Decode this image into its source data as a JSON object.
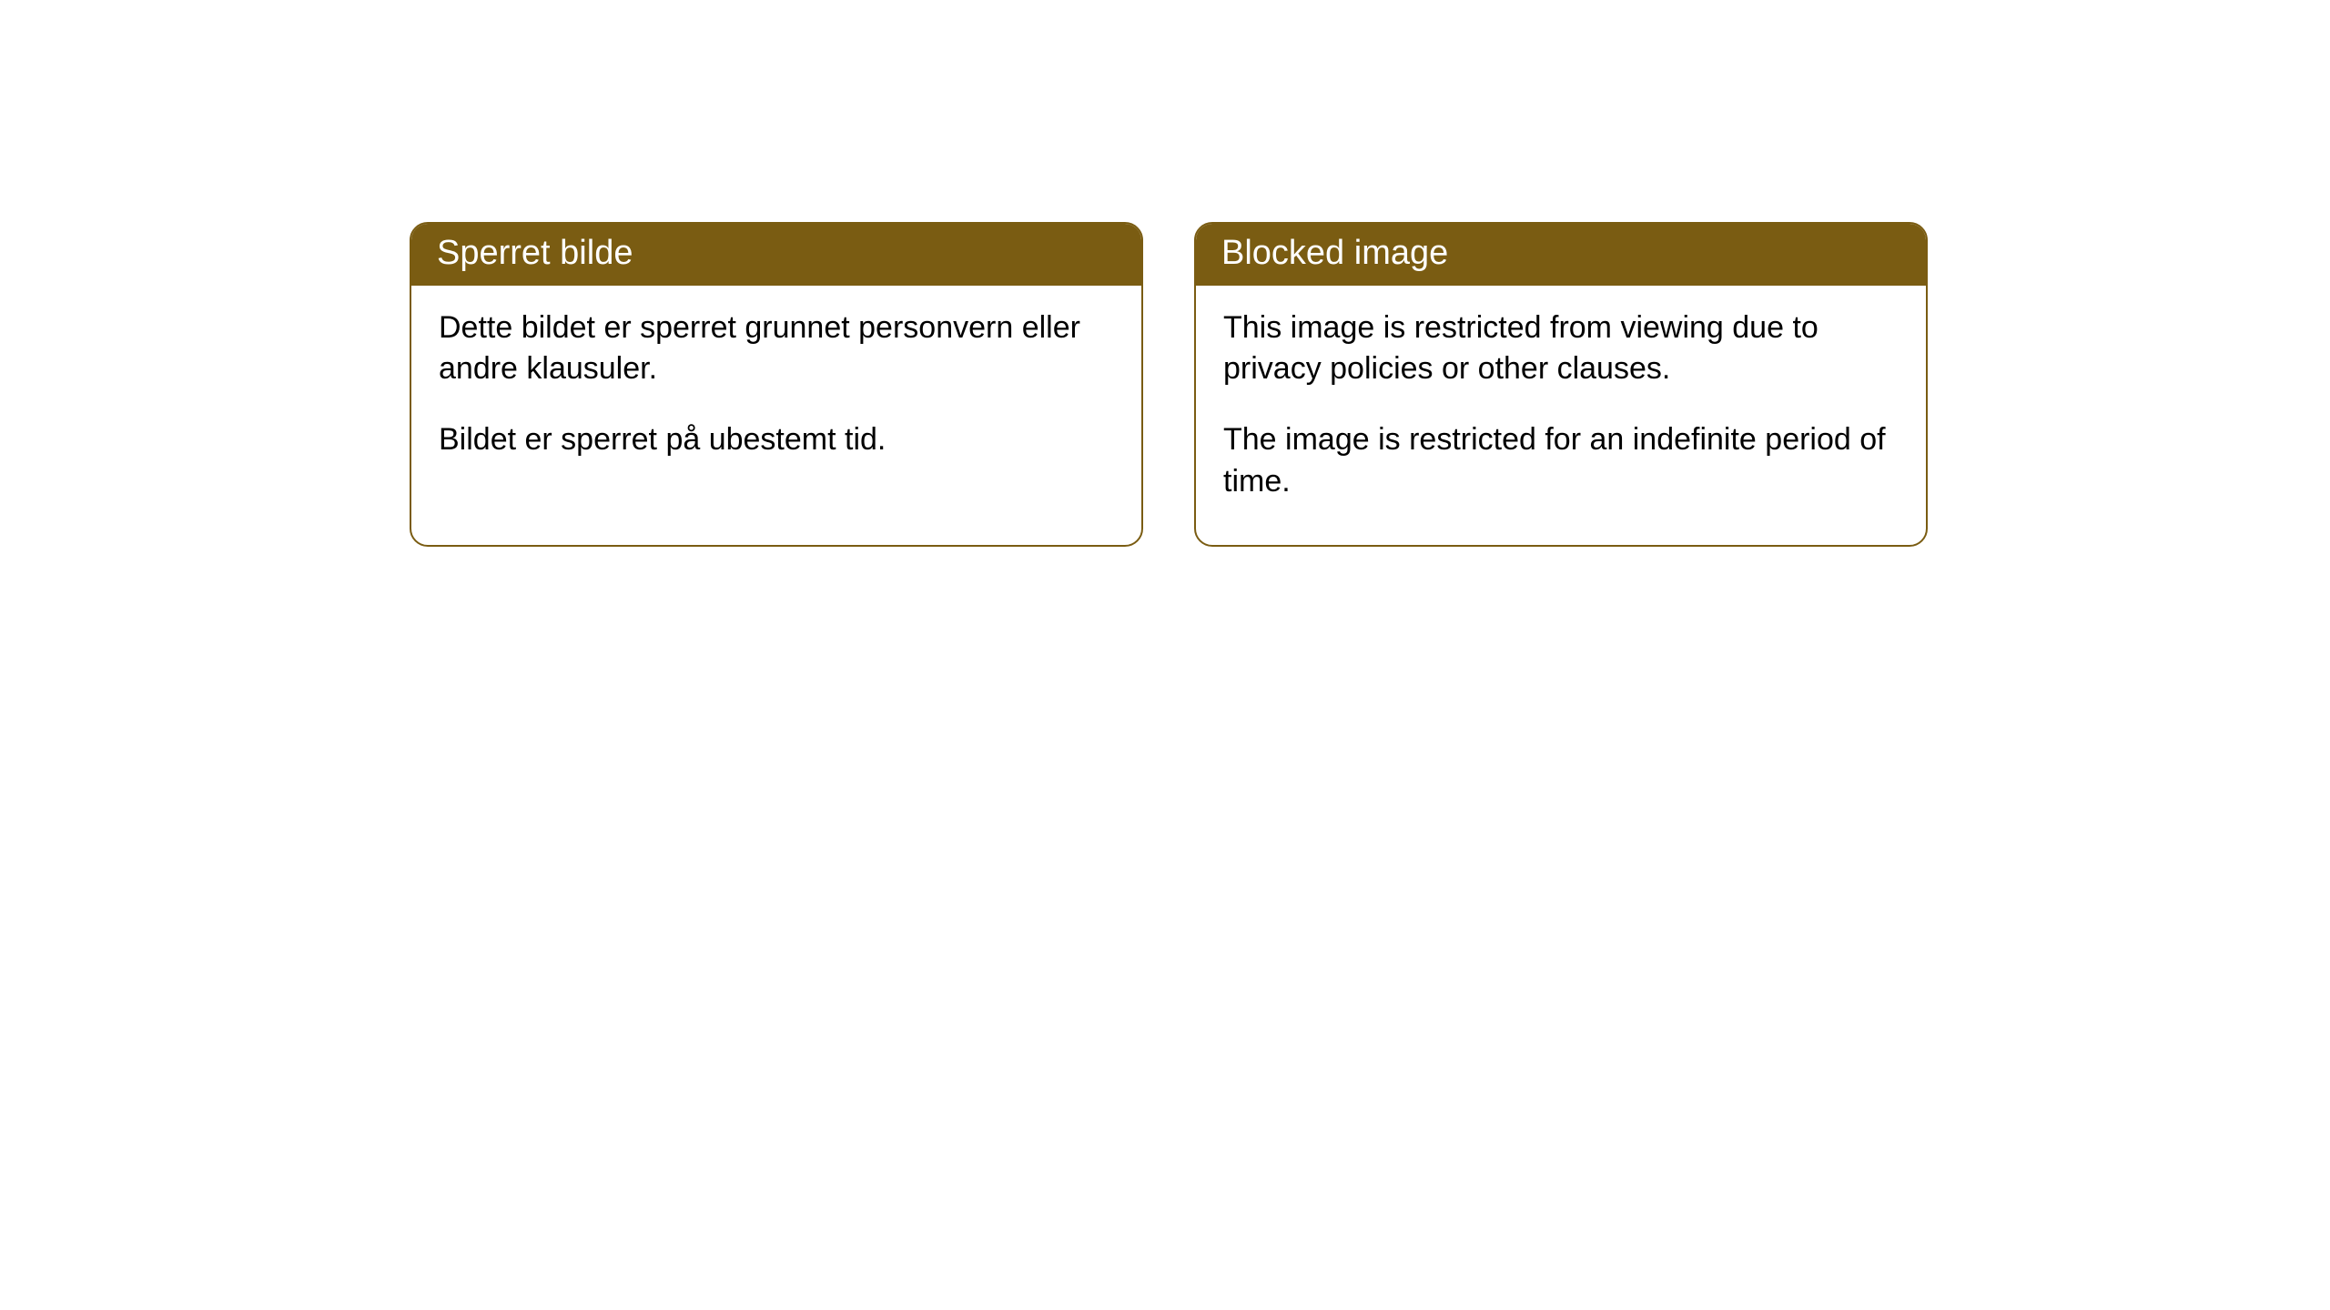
{
  "cards": [
    {
      "title": "Sperret bilde",
      "paragraph1": "Dette bildet er sperret grunnet personvern eller andre klausuler.",
      "paragraph2": "Bildet er sperret på ubestemt tid."
    },
    {
      "title": "Blocked image",
      "paragraph1": "This image is restricted from viewing due to privacy policies or other clauses.",
      "paragraph2": "The image is restricted for an indefinite period of time."
    }
  ],
  "style": {
    "header_background": "#7a5c12",
    "header_text_color": "#ffffff",
    "card_border_color": "#7a5c12",
    "card_background": "#ffffff",
    "body_text_color": "#000000",
    "border_radius": 20,
    "header_fontsize": 38,
    "body_fontsize": 34
  }
}
